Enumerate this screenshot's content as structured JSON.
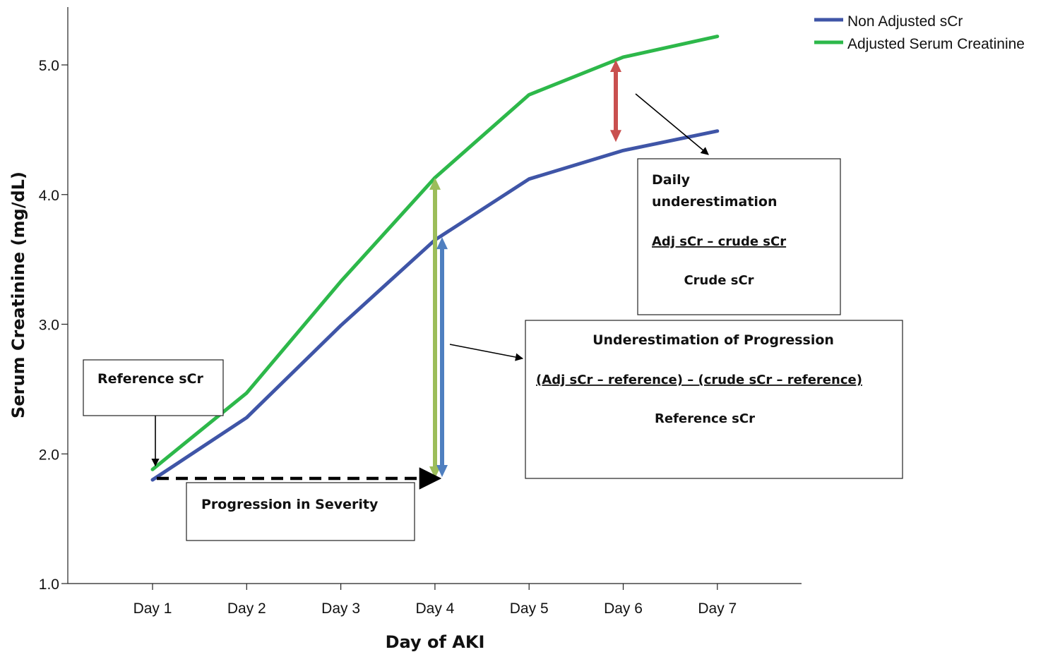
{
  "chart_data": {
    "type": "line",
    "xlabel": "Day of AKI",
    "ylabel": "Serum Creatinine (mg/dL)",
    "categories": [
      "Day 1",
      "Day 2",
      "Day 3",
      "Day 4",
      "Day 5",
      "Day 6",
      "Day 7"
    ],
    "ylim": [
      1.0,
      5.4
    ],
    "yticks": [
      "1.0",
      "2.0",
      "3.0",
      "4.0",
      "5.0"
    ],
    "grid": false,
    "legend_position": "top-right",
    "series": [
      {
        "name": "Non Adjusted sCr",
        "color": "#3f55a7",
        "values": [
          1.8,
          2.28,
          2.99,
          3.65,
          4.12,
          4.34,
          4.49
        ]
      },
      {
        "name": "Adjusted Serum Creatinine",
        "color": "#2db84a",
        "values": [
          1.88,
          2.47,
          3.33,
          4.13,
          4.77,
          5.06,
          5.22
        ]
      }
    ],
    "annotations": {
      "reference_box": {
        "title": "Reference sCr"
      },
      "progression_box": {
        "title": "Progression in Severity"
      },
      "daily_box": {
        "title_line1": "Daily",
        "title_line2": "underestimation",
        "numerator": "Adj sCr – crude sCr",
        "denominator": "Crude sCr"
      },
      "progression_under_box": {
        "title": "Underestimation of Progression",
        "numerator": "(Adj sCr – reference) – (crude sCr – reference)",
        "denominator": "Reference sCr"
      }
    },
    "arrow_colors": {
      "red": "#c9504f",
      "olive": "#9cbd5a",
      "blue": "#4f7fc0"
    }
  }
}
